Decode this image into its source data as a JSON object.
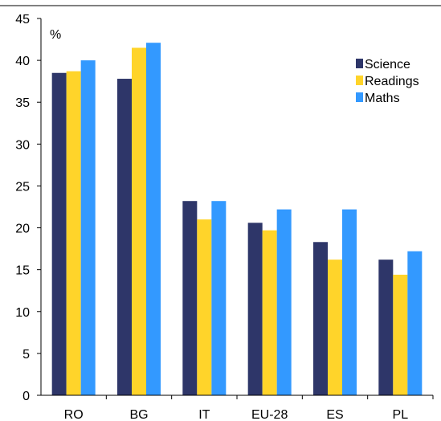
{
  "chart_data": {
    "type": "bar",
    "ylabel": "%",
    "ylim": [
      0,
      45
    ],
    "yticks": [
      0,
      5,
      10,
      15,
      20,
      25,
      30,
      35,
      40,
      45
    ],
    "categories": [
      "RO",
      "BG",
      "IT",
      "EU-28",
      "ES",
      "PL"
    ],
    "series": [
      {
        "name": "Science",
        "color": "#2E3669",
        "values": [
          38.5,
          37.8,
          23.2,
          20.6,
          18.3,
          16.2
        ]
      },
      {
        "name": "Readings",
        "color": "#FFD42A",
        "values": [
          38.7,
          41.5,
          21.0,
          19.7,
          16.2,
          14.4
        ]
      },
      {
        "name": "Maths",
        "color": "#3399FF",
        "values": [
          40.0,
          42.1,
          23.2,
          22.2,
          22.2,
          17.2
        ]
      }
    ],
    "legend_position": "top-right",
    "grid": false
  }
}
